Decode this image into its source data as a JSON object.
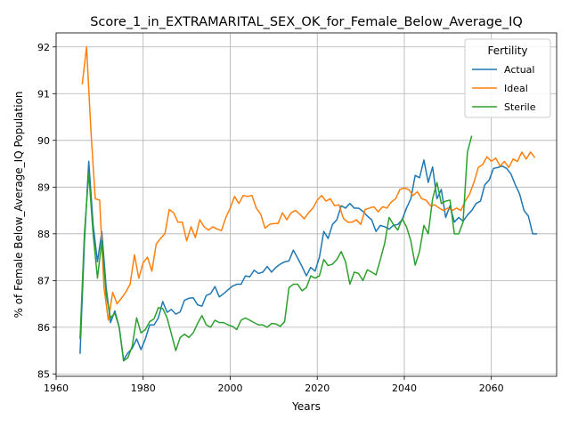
{
  "chart_data": {
    "type": "line",
    "title": "Score_1_in_EXTRAMARITAL_SEX_OK_for_Female_Below_Average_IQ",
    "xlabel": "Years",
    "ylabel": "% of Female Below_Average_IQ Population",
    "xlim": [
      1960,
      2075
    ],
    "ylim": [
      84.95,
      92.3
    ],
    "xticks": [
      1960,
      1980,
      2000,
      2020,
      2040,
      2060
    ],
    "yticks": [
      85,
      86,
      87,
      88,
      89,
      90,
      91,
      92
    ],
    "grid": true,
    "legend": {
      "title": "Fertility",
      "position": "top-right"
    },
    "series": [
      {
        "name": "Actual",
        "color": "#1f77b4",
        "points": [
          [
            1965.5,
            85.43
          ],
          [
            1966.5,
            87.8
          ],
          [
            1967.5,
            89.55
          ],
          [
            1968.5,
            88.2
          ],
          [
            1969.5,
            87.4
          ],
          [
            1970.5,
            88.05
          ],
          [
            1971.5,
            86.85
          ],
          [
            1972.5,
            86.1
          ],
          [
            1973.5,
            86.35
          ],
          [
            1974.5,
            86.0
          ],
          [
            1975.5,
            85.3
          ],
          [
            1976.5,
            85.45
          ],
          [
            1977.5,
            85.55
          ],
          [
            1978.5,
            85.75
          ],
          [
            1979.5,
            85.52
          ],
          [
            1980.5,
            85.75
          ],
          [
            1981.5,
            86.05
          ],
          [
            1982.5,
            86.05
          ],
          [
            1983.5,
            86.2
          ],
          [
            1984.5,
            86.55
          ],
          [
            1985.5,
            86.32
          ],
          [
            1986.5,
            86.38
          ],
          [
            1987.5,
            86.28
          ],
          [
            1988.5,
            86.33
          ],
          [
            1989.5,
            86.58
          ],
          [
            1990.5,
            86.62
          ],
          [
            1991.5,
            86.63
          ],
          [
            1992.5,
            86.48
          ],
          [
            1993.5,
            86.45
          ],
          [
            1994.5,
            86.68
          ],
          [
            1995.5,
            86.72
          ],
          [
            1996.5,
            86.87
          ],
          [
            1997.5,
            86.65
          ],
          [
            1998.5,
            86.72
          ],
          [
            1999.5,
            86.8
          ],
          [
            2000.5,
            86.88
          ],
          [
            2001.5,
            86.92
          ],
          [
            2002.5,
            86.92
          ],
          [
            2003.5,
            87.1
          ],
          [
            2004.5,
            87.08
          ],
          [
            2005.5,
            87.22
          ],
          [
            2006.5,
            87.15
          ],
          [
            2007.5,
            87.18
          ],
          [
            2008.5,
            87.3
          ],
          [
            2009.5,
            87.18
          ],
          [
            2010.5,
            87.28
          ],
          [
            2011.5,
            87.35
          ],
          [
            2012.5,
            87.4
          ],
          [
            2013.5,
            87.42
          ],
          [
            2014.5,
            87.65
          ],
          [
            2015.5,
            87.48
          ],
          [
            2016.5,
            87.3
          ],
          [
            2017.5,
            87.1
          ],
          [
            2018.5,
            87.28
          ],
          [
            2019.5,
            87.2
          ],
          [
            2020.5,
            87.5
          ],
          [
            2021.5,
            88.05
          ],
          [
            2022.5,
            87.9
          ],
          [
            2023.5,
            88.2
          ],
          [
            2024.5,
            88.3
          ],
          [
            2025.5,
            88.6
          ],
          [
            2026.5,
            88.55
          ],
          [
            2027.5,
            88.65
          ],
          [
            2028.5,
            88.55
          ],
          [
            2029.5,
            88.55
          ],
          [
            2030.5,
            88.48
          ],
          [
            2031.5,
            88.38
          ],
          [
            2032.5,
            88.3
          ],
          [
            2033.5,
            88.05
          ],
          [
            2034.5,
            88.18
          ],
          [
            2035.5,
            88.15
          ],
          [
            2036.5,
            88.1
          ],
          [
            2037.5,
            88.18
          ],
          [
            2038.5,
            88.2
          ],
          [
            2039.5,
            88.3
          ],
          [
            2040.5,
            88.55
          ],
          [
            2041.5,
            88.75
          ],
          [
            2042.5,
            89.25
          ],
          [
            2043.5,
            89.2
          ],
          [
            2044.5,
            89.58
          ],
          [
            2045.5,
            89.1
          ],
          [
            2046.5,
            89.43
          ],
          [
            2047.5,
            88.75
          ],
          [
            2048.5,
            88.95
          ],
          [
            2049.5,
            88.35
          ],
          [
            2050.5,
            88.6
          ],
          [
            2051.5,
            88.25
          ],
          [
            2052.5,
            88.35
          ],
          [
            2053.5,
            88.27
          ],
          [
            2054.5,
            88.4
          ],
          [
            2055.5,
            88.5
          ],
          [
            2056.5,
            88.65
          ],
          [
            2057.5,
            88.7
          ],
          [
            2058.5,
            89.05
          ],
          [
            2059.5,
            89.15
          ],
          [
            2060.5,
            89.4
          ],
          [
            2061.5,
            89.42
          ],
          [
            2062.5,
            89.45
          ],
          [
            2063.5,
            89.4
          ],
          [
            2064.5,
            89.28
          ],
          [
            2065.5,
            89.05
          ],
          [
            2066.5,
            88.85
          ],
          [
            2067.5,
            88.5
          ],
          [
            2068.5,
            88.38
          ],
          [
            2069.5,
            88.0
          ],
          [
            2070.5,
            88.0
          ]
        ]
      },
      {
        "name": "Ideal",
        "color": "#ff7f0e",
        "points": [
          [
            1966.0,
            91.2
          ],
          [
            1967.0,
            92.0
          ],
          [
            1968.0,
            90.2
          ],
          [
            1969.0,
            88.75
          ],
          [
            1970.0,
            88.72
          ],
          [
            1971.0,
            86.85
          ],
          [
            1972.0,
            86.15
          ],
          [
            1973.0,
            86.75
          ],
          [
            1974.0,
            86.5
          ],
          [
            1975.0,
            86.62
          ],
          [
            1976.0,
            86.75
          ],
          [
            1977.0,
            86.92
          ],
          [
            1978.0,
            87.55
          ],
          [
            1979.0,
            87.05
          ],
          [
            1980.0,
            87.38
          ],
          [
            1981.0,
            87.5
          ],
          [
            1982.0,
            87.2
          ],
          [
            1983.0,
            87.78
          ],
          [
            1984.0,
            87.9
          ],
          [
            1985.0,
            88.0
          ],
          [
            1986.0,
            88.52
          ],
          [
            1987.0,
            88.45
          ],
          [
            1988.0,
            88.25
          ],
          [
            1989.0,
            88.25
          ],
          [
            1990.0,
            87.85
          ],
          [
            1991.0,
            88.15
          ],
          [
            1992.0,
            87.92
          ],
          [
            1993.0,
            88.3
          ],
          [
            1994.0,
            88.15
          ],
          [
            1995.0,
            88.08
          ],
          [
            1996.0,
            88.15
          ],
          [
            1997.0,
            88.1
          ],
          [
            1998.0,
            88.07
          ],
          [
            1999.0,
            88.35
          ],
          [
            2000.0,
            88.55
          ],
          [
            2001.0,
            88.8
          ],
          [
            2002.0,
            88.65
          ],
          [
            2003.0,
            88.82
          ],
          [
            2004.0,
            88.8
          ],
          [
            2005.0,
            88.82
          ],
          [
            2006.0,
            88.55
          ],
          [
            2007.0,
            88.42
          ],
          [
            2008.0,
            88.12
          ],
          [
            2009.0,
            88.2
          ],
          [
            2010.0,
            88.22
          ],
          [
            2011.0,
            88.22
          ],
          [
            2012.0,
            88.45
          ],
          [
            2013.0,
            88.3
          ],
          [
            2014.0,
            88.45
          ],
          [
            2015.0,
            88.5
          ],
          [
            2016.0,
            88.42
          ],
          [
            2017.0,
            88.32
          ],
          [
            2018.0,
            88.45
          ],
          [
            2019.0,
            88.55
          ],
          [
            2020.0,
            88.72
          ],
          [
            2021.0,
            88.82
          ],
          [
            2022.0,
            88.7
          ],
          [
            2023.0,
            88.75
          ],
          [
            2024.0,
            88.6
          ],
          [
            2025.0,
            88.62
          ],
          [
            2026.0,
            88.33
          ],
          [
            2027.0,
            88.25
          ],
          [
            2028.0,
            88.25
          ],
          [
            2029.0,
            88.3
          ],
          [
            2030.0,
            88.2
          ],
          [
            2031.0,
            88.52
          ],
          [
            2032.0,
            88.55
          ],
          [
            2033.0,
            88.58
          ],
          [
            2034.0,
            88.47
          ],
          [
            2035.0,
            88.58
          ],
          [
            2036.0,
            88.55
          ],
          [
            2037.0,
            88.68
          ],
          [
            2038.0,
            88.75
          ],
          [
            2039.0,
            88.95
          ],
          [
            2040.0,
            88.98
          ],
          [
            2041.0,
            88.95
          ],
          [
            2042.0,
            88.82
          ],
          [
            2043.0,
            88.9
          ],
          [
            2044.0,
            88.75
          ],
          [
            2045.0,
            88.72
          ],
          [
            2046.0,
            88.6
          ],
          [
            2047.0,
            88.62
          ],
          [
            2048.0,
            88.55
          ],
          [
            2049.0,
            88.5
          ],
          [
            2050.0,
            88.55
          ],
          [
            2051.0,
            88.5
          ],
          [
            2052.0,
            88.55
          ],
          [
            2053.0,
            88.5
          ],
          [
            2054.0,
            88.7
          ],
          [
            2055.0,
            88.85
          ],
          [
            2056.0,
            89.1
          ],
          [
            2057.0,
            89.42
          ],
          [
            2058.0,
            89.48
          ],
          [
            2059.0,
            89.65
          ],
          [
            2060.0,
            89.55
          ],
          [
            2061.0,
            89.62
          ],
          [
            2062.0,
            89.45
          ],
          [
            2063.0,
            89.55
          ],
          [
            2064.0,
            89.42
          ],
          [
            2065.0,
            89.6
          ],
          [
            2066.0,
            89.55
          ],
          [
            2067.0,
            89.75
          ],
          [
            2068.0,
            89.6
          ],
          [
            2069.0,
            89.75
          ],
          [
            2070.0,
            89.63
          ]
        ]
      },
      {
        "name": "Sterile",
        "color": "#2ca02c",
        "points": [
          [
            1965.5,
            85.75
          ],
          [
            1966.5,
            88.0
          ],
          [
            1967.5,
            89.3
          ],
          [
            1968.5,
            88.0
          ],
          [
            1969.5,
            87.05
          ],
          [
            1970.5,
            87.85
          ],
          [
            1971.5,
            86.7
          ],
          [
            1972.5,
            86.2
          ],
          [
            1973.5,
            86.3
          ],
          [
            1974.5,
            86.0
          ],
          [
            1975.5,
            85.28
          ],
          [
            1976.5,
            85.35
          ],
          [
            1977.5,
            85.6
          ],
          [
            1978.5,
            86.2
          ],
          [
            1979.5,
            85.88
          ],
          [
            1980.5,
            85.95
          ],
          [
            1981.5,
            86.12
          ],
          [
            1982.5,
            86.18
          ],
          [
            1983.5,
            86.42
          ],
          [
            1984.5,
            86.4
          ],
          [
            1985.5,
            86.2
          ],
          [
            1986.5,
            85.85
          ],
          [
            1987.5,
            85.5
          ],
          [
            1988.5,
            85.78
          ],
          [
            1989.5,
            85.85
          ],
          [
            1990.5,
            85.78
          ],
          [
            1991.5,
            85.88
          ],
          [
            1992.5,
            86.08
          ],
          [
            1993.5,
            86.25
          ],
          [
            1994.5,
            86.05
          ],
          [
            1995.5,
            86.0
          ],
          [
            1996.5,
            86.15
          ],
          [
            1997.5,
            86.1
          ],
          [
            1998.5,
            86.1
          ],
          [
            1999.5,
            86.05
          ],
          [
            2000.5,
            86.02
          ],
          [
            2001.5,
            85.95
          ],
          [
            2002.5,
            86.15
          ],
          [
            2003.5,
            86.2
          ],
          [
            2004.5,
            86.15
          ],
          [
            2005.5,
            86.1
          ],
          [
            2006.5,
            86.05
          ],
          [
            2007.5,
            86.05
          ],
          [
            2008.5,
            86.0
          ],
          [
            2009.5,
            86.08
          ],
          [
            2010.5,
            86.07
          ],
          [
            2011.5,
            86.02
          ],
          [
            2012.5,
            86.12
          ],
          [
            2013.5,
            86.85
          ],
          [
            2014.5,
            86.92
          ],
          [
            2015.5,
            86.92
          ],
          [
            2016.5,
            86.78
          ],
          [
            2017.5,
            86.85
          ],
          [
            2018.5,
            87.1
          ],
          [
            2019.5,
            87.05
          ],
          [
            2020.5,
            87.1
          ],
          [
            2021.5,
            87.45
          ],
          [
            2022.5,
            87.32
          ],
          [
            2023.5,
            87.35
          ],
          [
            2024.5,
            87.45
          ],
          [
            2025.5,
            87.62
          ],
          [
            2026.5,
            87.4
          ],
          [
            2027.5,
            86.92
          ],
          [
            2028.5,
            87.18
          ],
          [
            2029.5,
            87.15
          ],
          [
            2030.5,
            87.0
          ],
          [
            2031.5,
            87.23
          ],
          [
            2032.5,
            87.18
          ],
          [
            2033.5,
            87.12
          ],
          [
            2034.5,
            87.45
          ],
          [
            2035.5,
            87.8
          ],
          [
            2036.5,
            88.35
          ],
          [
            2037.5,
            88.2
          ],
          [
            2038.5,
            88.08
          ],
          [
            2039.5,
            88.32
          ],
          [
            2040.5,
            88.15
          ],
          [
            2041.5,
            87.85
          ],
          [
            2042.5,
            87.33
          ],
          [
            2043.5,
            87.62
          ],
          [
            2044.5,
            88.18
          ],
          [
            2045.5,
            88.0
          ],
          [
            2046.5,
            88.75
          ],
          [
            2047.5,
            89.1
          ],
          [
            2048.5,
            88.65
          ],
          [
            2049.5,
            88.7
          ],
          [
            2050.5,
            88.72
          ],
          [
            2051.5,
            88.0
          ],
          [
            2052.5,
            88.0
          ],
          [
            2053.5,
            88.25
          ],
          [
            2054.5,
            89.75
          ],
          [
            2055.5,
            90.1
          ]
        ]
      }
    ]
  }
}
